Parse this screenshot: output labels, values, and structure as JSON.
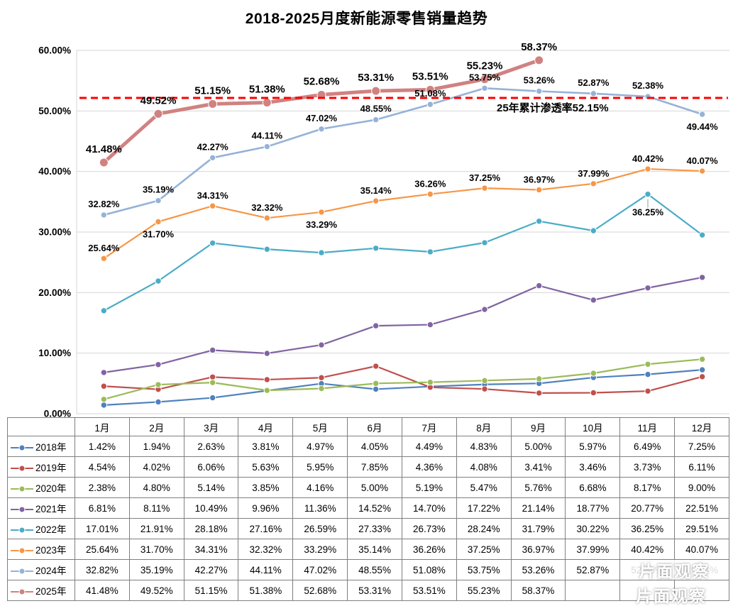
{
  "title": "2018-2025月度新能源零售销量趋势",
  "watermark": "片面观察",
  "chart_data": {
    "type": "line",
    "title": "2018-2025月度新能源零售销量趋势",
    "categories": [
      "1月",
      "2月",
      "3月",
      "4月",
      "5月",
      "6月",
      "7月",
      "8月",
      "9月",
      "10月",
      "11月",
      "12月"
    ],
    "ylim": [
      0,
      60
    ],
    "ytick_step": 10,
    "ytick_labels": [
      "0.00%",
      "10.00%",
      "20.00%",
      "30.00%",
      "40.00%",
      "50.00%",
      "60.00%"
    ],
    "grid": true,
    "legend_position": "table-left-column",
    "series": [
      {
        "name": "2018年",
        "color": "#4F81BD",
        "values": [
          1.42,
          1.94,
          2.63,
          3.81,
          4.97,
          4.05,
          4.49,
          4.83,
          5.0,
          5.97,
          6.49,
          7.25
        ],
        "labels": "none"
      },
      {
        "name": "2019年",
        "color": "#C0504D",
        "values": [
          4.54,
          4.02,
          6.06,
          5.63,
          5.95,
          7.85,
          4.36,
          4.08,
          3.41,
          3.46,
          3.73,
          6.11
        ],
        "labels": "none"
      },
      {
        "name": "2020年",
        "color": "#9BBB59",
        "values": [
          2.38,
          4.8,
          5.14,
          3.85,
          4.16,
          5.0,
          5.19,
          5.47,
          5.76,
          6.68,
          8.17,
          9.0
        ],
        "labels": "none"
      },
      {
        "name": "2021年",
        "color": "#8064A2",
        "values": [
          6.81,
          8.11,
          10.49,
          9.96,
          11.36,
          14.52,
          14.7,
          17.22,
          21.14,
          18.77,
          20.77,
          22.51
        ],
        "labels": "none"
      },
      {
        "name": "2022年",
        "color": "#4BACC6",
        "values": [
          17.01,
          21.91,
          28.18,
          27.16,
          26.59,
          27.33,
          26.73,
          28.24,
          31.79,
          30.22,
          36.25,
          29.51
        ],
        "labels": [
          10
        ],
        "label_font_weight": 600,
        "label_font_size": 13,
        "label_default_offset": [
          0,
          30
        ]
      },
      {
        "name": "2023年",
        "color": "#F79646",
        "values": [
          25.64,
          31.7,
          34.31,
          32.32,
          33.29,
          35.14,
          36.26,
          37.25,
          36.97,
          37.99,
          40.42,
          40.07
        ],
        "labels": "all",
        "label_font_weight": 600,
        "label_font_size": 13,
        "label_default_offset": [
          0,
          -10
        ],
        "label_offsets": {
          "1": [
            0,
            22
          ],
          "4": [
            0,
            22
          ]
        }
      },
      {
        "name": "2024年",
        "color": "#95B3D7",
        "values": [
          32.82,
          35.19,
          42.27,
          44.11,
          47.02,
          48.55,
          51.08,
          53.75,
          53.26,
          52.87,
          52.38,
          49.44
        ],
        "labels": "all",
        "label_font_weight": 600,
        "label_font_size": 13,
        "label_default_offset": [
          0,
          -11
        ],
        "label_offsets": {
          "11": [
            0,
            22
          ]
        }
      },
      {
        "name": "2025年",
        "color": "#D08280",
        "values": [
          41.48,
          49.52,
          51.15,
          51.38,
          52.68,
          53.31,
          53.51,
          55.23,
          58.37
        ],
        "labels": "all",
        "label_font_weight": 700,
        "label_font_size": 15,
        "label_default_offset": [
          0,
          -14
        ],
        "thick": true
      }
    ],
    "reference_line": {
      "value": 52.15,
      "color": "#FF0000",
      "style": "dashed",
      "label": "25年累计渗透率52.15%",
      "label_pos": [
        700,
        157
      ]
    }
  },
  "table": {
    "corner_header": "",
    "month_headers": [
      "1月",
      "2月",
      "3月",
      "4月",
      "5月",
      "6月",
      "7月",
      "8月",
      "9月",
      "10月",
      "11月",
      "12月"
    ],
    "note": "rows mirror chart_data.series; 2025 months 10-12 empty; 2024 months 11-12 obscured by watermark"
  }
}
